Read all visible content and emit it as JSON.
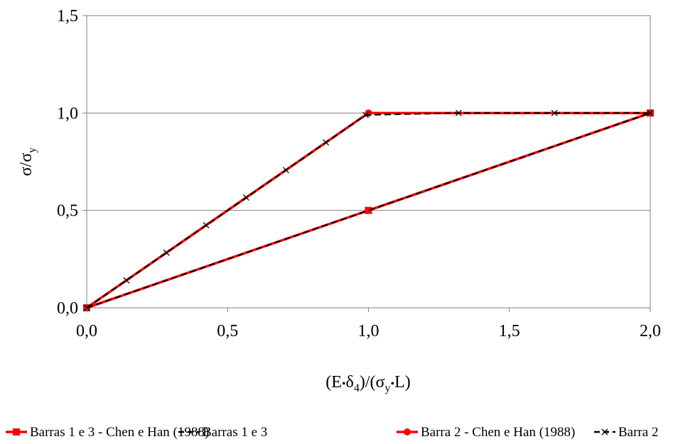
{
  "chart_data": {
    "type": "line",
    "xlabel": {
      "pre": "(E",
      "dot1": "•",
      "delta": "δ",
      "sub4": "4",
      "mid": ")/(σ",
      "suby": "y",
      "dot2": "•",
      "post": "L)"
    },
    "ylabel": {
      "main": "σ/σ",
      "sub": "y"
    },
    "xlim": [
      0,
      2
    ],
    "ylim": [
      0,
      1.5
    ],
    "xticks": [
      {
        "value": 0,
        "label": "0,0"
      },
      {
        "value": 0.5,
        "label": "0,5"
      },
      {
        "value": 1.0,
        "label": "1,0"
      },
      {
        "value": 1.5,
        "label": "1,5"
      },
      {
        "value": 2.0,
        "label": "2,0"
      }
    ],
    "yticks": [
      {
        "value": 0,
        "label": "0,0"
      },
      {
        "value": 0.5,
        "label": "0,5"
      },
      {
        "value": 1.0,
        "label": "1,0"
      },
      {
        "value": 1.5,
        "label": "1,5"
      }
    ],
    "grid": "horizontal",
    "legend_position": "bottom",
    "series": [
      {
        "name": "Barras 1 e 3 - Chen e Han (1988)",
        "color": "#ff0000",
        "style": "solid",
        "marker": "square",
        "x": [
          0,
          1.0,
          2.0
        ],
        "y": [
          0,
          0.5,
          1.0
        ]
      },
      {
        "name": "Barras 1 e 3",
        "color": "#000000",
        "style": "dashed",
        "marker": "none",
        "x": [
          0,
          2.0
        ],
        "y": [
          0,
          1.0
        ]
      },
      {
        "name": "Barra 2 - Chen e Han (1988)",
        "color": "#ff0000",
        "style": "solid",
        "marker": "circle",
        "x": [
          0,
          1.0,
          2.0
        ],
        "y": [
          0,
          1.0,
          1.0
        ]
      },
      {
        "name": "Barra 2",
        "color": "#000000",
        "style": "dashed",
        "marker": "x",
        "x": [
          0,
          0.141,
          0.283,
          0.424,
          0.566,
          0.707,
          0.849,
          0.99,
          1.32,
          1.66,
          2.0
        ],
        "y": [
          0,
          0.141,
          0.283,
          0.424,
          0.566,
          0.707,
          0.849,
          0.99,
          1.0,
          1.0,
          1.0
        ]
      }
    ]
  }
}
